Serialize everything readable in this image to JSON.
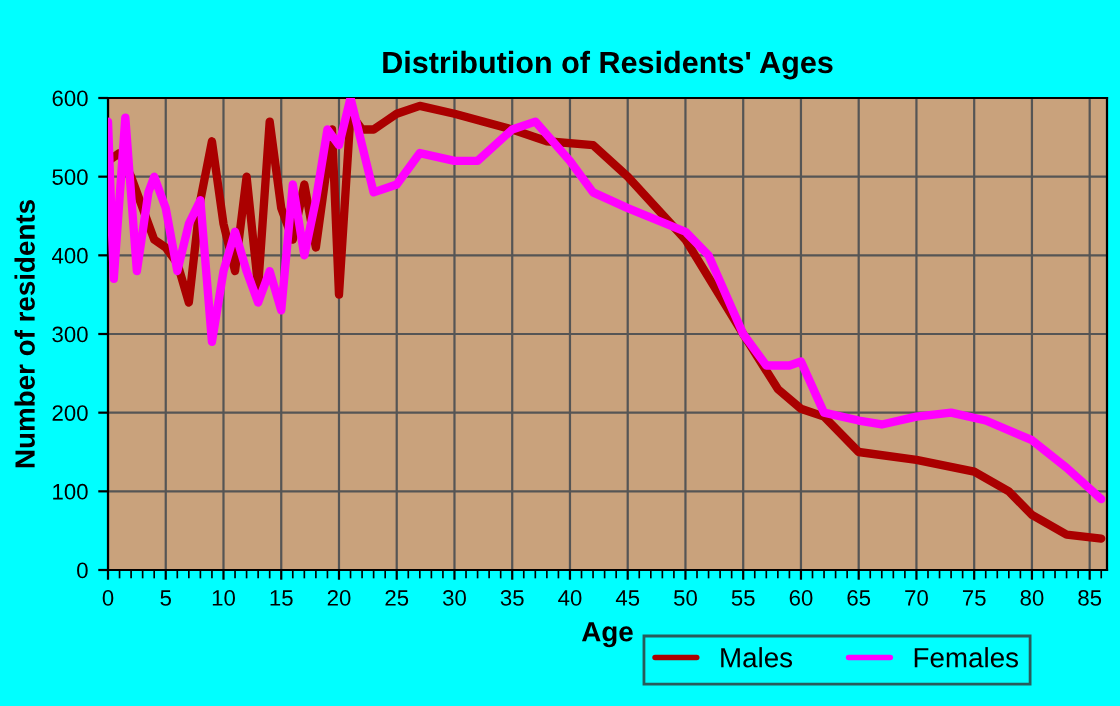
{
  "chart_data": {
    "type": "line",
    "title": "Distribution of Residents' Ages",
    "xlabel": "Age",
    "ylabel": "Number of residents",
    "xlim": [
      0,
      86.5
    ],
    "xticks": [
      0,
      5,
      10,
      15,
      20,
      25,
      30,
      35,
      40,
      45,
      50,
      55,
      60,
      65,
      70,
      75,
      80,
      85
    ],
    "ylim": [
      0,
      600
    ],
    "yticks": [
      0,
      100,
      200,
      300,
      400,
      500,
      600
    ],
    "grid": true,
    "legend": "bottom right",
    "series": [
      {
        "name": "Males",
        "color": "#aa0000",
        "x": [
          0,
          1,
          2,
          3,
          4,
          5,
          6,
          7,
          8,
          9,
          10,
          11,
          12,
          13,
          14,
          15,
          16,
          17,
          18,
          19.4,
          20,
          21,
          22,
          23,
          24,
          25,
          27,
          30,
          35,
          38,
          42,
          45,
          50,
          55,
          58,
          60,
          62,
          65,
          70,
          75,
          78,
          80,
          83,
          86
        ],
        "values": [
          520,
          530,
          500,
          460,
          420,
          410,
          390,
          340,
          470,
          545,
          440,
          380,
          500,
          360,
          570,
          460,
          420,
          490,
          410,
          560,
          350,
          580,
          560,
          560,
          570,
          580,
          590,
          580,
          560,
          545,
          540,
          500,
          420,
          300,
          230,
          205,
          195,
          150,
          140,
          125,
          100,
          70,
          45,
          40
        ]
      },
      {
        "name": "Females",
        "color": "#ff00ff",
        "x": [
          0,
          0.5,
          1.5,
          2.5,
          3.5,
          4,
          5,
          6,
          7,
          8,
          9,
          10,
          11,
          12,
          13,
          14,
          15,
          16,
          17,
          18,
          19,
          20,
          21,
          22,
          23,
          25,
          27,
          30,
          32,
          35,
          37,
          40,
          42,
          45,
          50,
          52,
          55,
          57,
          59,
          60,
          62,
          65,
          67,
          70,
          73,
          76,
          80,
          83,
          86
        ],
        "values": [
          570,
          370,
          575,
          380,
          480,
          500,
          460,
          380,
          440,
          470,
          290,
          380,
          430,
          380,
          340,
          380,
          330,
          490,
          400,
          470,
          560,
          540,
          600,
          540,
          480,
          490,
          530,
          520,
          520,
          560,
          570,
          520,
          480,
          460,
          430,
          400,
          300,
          260,
          260,
          265,
          200,
          190,
          185,
          195,
          200,
          190,
          165,
          130,
          90
        ]
      }
    ]
  }
}
